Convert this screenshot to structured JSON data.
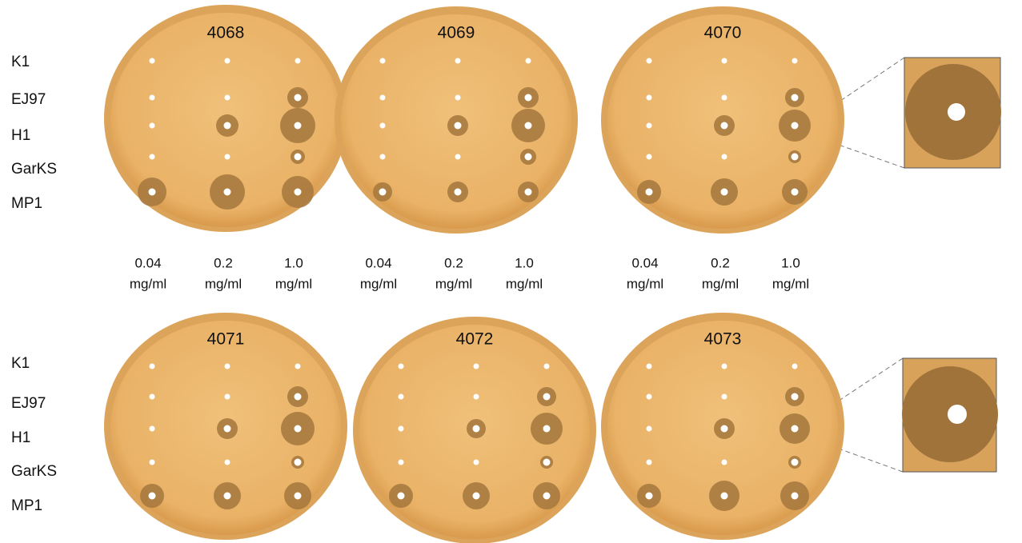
{
  "top_row": {
    "row_labels": [
      "K1",
      "EJ97",
      "H1",
      "GarKS",
      "MP1"
    ],
    "plates": [
      {
        "label": "4068"
      },
      {
        "label": "4069"
      },
      {
        "label": "4070"
      }
    ],
    "concentrations": [
      [
        {
          "value": "0.04",
          "unit": "mg/ml"
        },
        {
          "value": "0.2",
          "unit": "mg/ml"
        },
        {
          "value": "1.0",
          "unit": "mg/ml"
        }
      ],
      [
        {
          "value": "0.04",
          "unit": "mg/ml"
        },
        {
          "value": "0.2",
          "unit": "mg/ml"
        },
        {
          "value": "1.0",
          "unit": "mg/ml"
        }
      ],
      [
        {
          "value": "0.04",
          "unit": "mg/ml"
        },
        {
          "value": "0.2",
          "unit": "mg/ml"
        },
        {
          "value": "1.0",
          "unit": "mg/ml"
        }
      ]
    ]
  },
  "bottom_row": {
    "row_labels": [
      "K1",
      "EJ97",
      "H1",
      "GarKS",
      "MP1"
    ],
    "plates": [
      {
        "label": "4071"
      },
      {
        "label": "4072"
      },
      {
        "label": "4073"
      }
    ]
  }
}
